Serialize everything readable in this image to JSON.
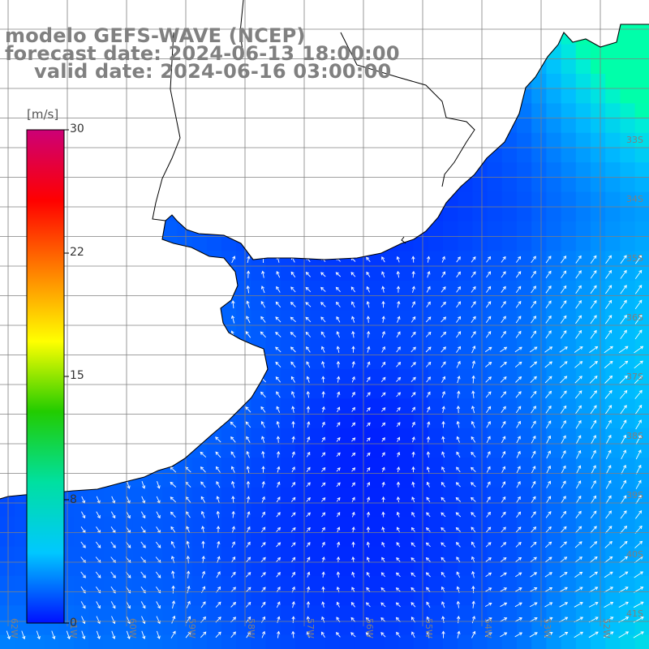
{
  "header": {
    "line1": "modelo GEFS-WAVE (NCEP)",
    "line2": "forecast date: 2024-06-13 18:00:00",
    "line3": "valid date: 2024-06-16 03:00:00"
  },
  "colorbar": {
    "unit": "[m/s]",
    "ticks": [
      "30",
      "22",
      "15",
      "8",
      "0"
    ],
    "min": 0,
    "max": 30,
    "colors": [
      "#0010ff",
      "#00c8ff",
      "#00e0a0",
      "#22cc00",
      "#ffff00",
      "#ff8000",
      "#ff0000",
      "#cc0077"
    ]
  },
  "map": {
    "land_color": "#ffffff",
    "grid_color": "#808080",
    "coast_color": "#000000",
    "arrow_color": "#ffffff",
    "lat_labels": [
      "33S",
      "34S",
      "35S",
      "36S",
      "37S",
      "38S",
      "39S",
      "40S",
      "41S"
    ],
    "lon_labels": [
      "62W",
      "61W",
      "60W",
      "59W",
      "58W",
      "57W",
      "56W",
      "55W",
      "54W",
      "53W",
      "52W",
      "51W"
    ]
  }
}
